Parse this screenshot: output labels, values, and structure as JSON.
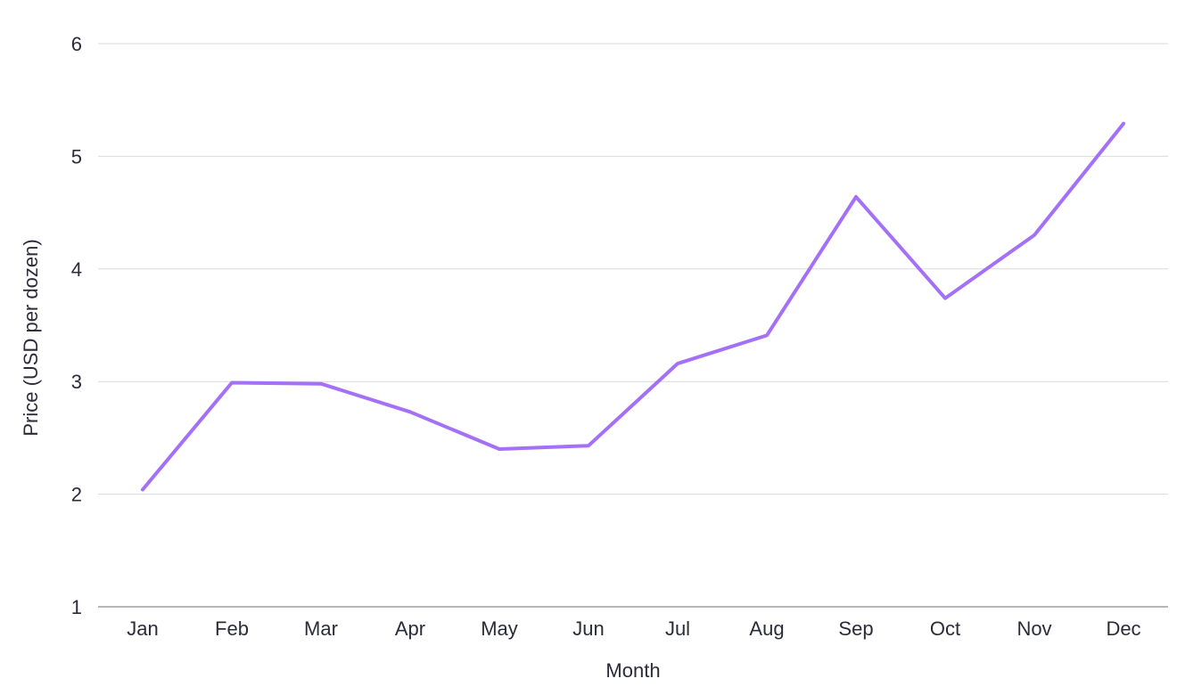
{
  "colors": {
    "series": "#a370f7",
    "grid": "#d9d9de",
    "axis": "#8a8a99",
    "text": "#2b2b3a"
  },
  "chart_data": {
    "type": "line",
    "title": "",
    "xlabel": "Month",
    "ylabel": "Price (USD per dozen)",
    "categories": [
      "Jan",
      "Feb",
      "Mar",
      "Apr",
      "May",
      "Jun",
      "Jul",
      "Aug",
      "Sep",
      "Oct",
      "Nov",
      "Dec"
    ],
    "series": [
      {
        "values": [
          2.04,
          2.99,
          2.98,
          2.73,
          2.4,
          2.43,
          3.16,
          3.41,
          4.64,
          3.74,
          4.3,
          5.29
        ]
      }
    ],
    "yticks": [
      1,
      2,
      3,
      4,
      5,
      6
    ],
    "ylim": [
      1,
      6
    ],
    "grid": true,
    "legend": "none"
  }
}
